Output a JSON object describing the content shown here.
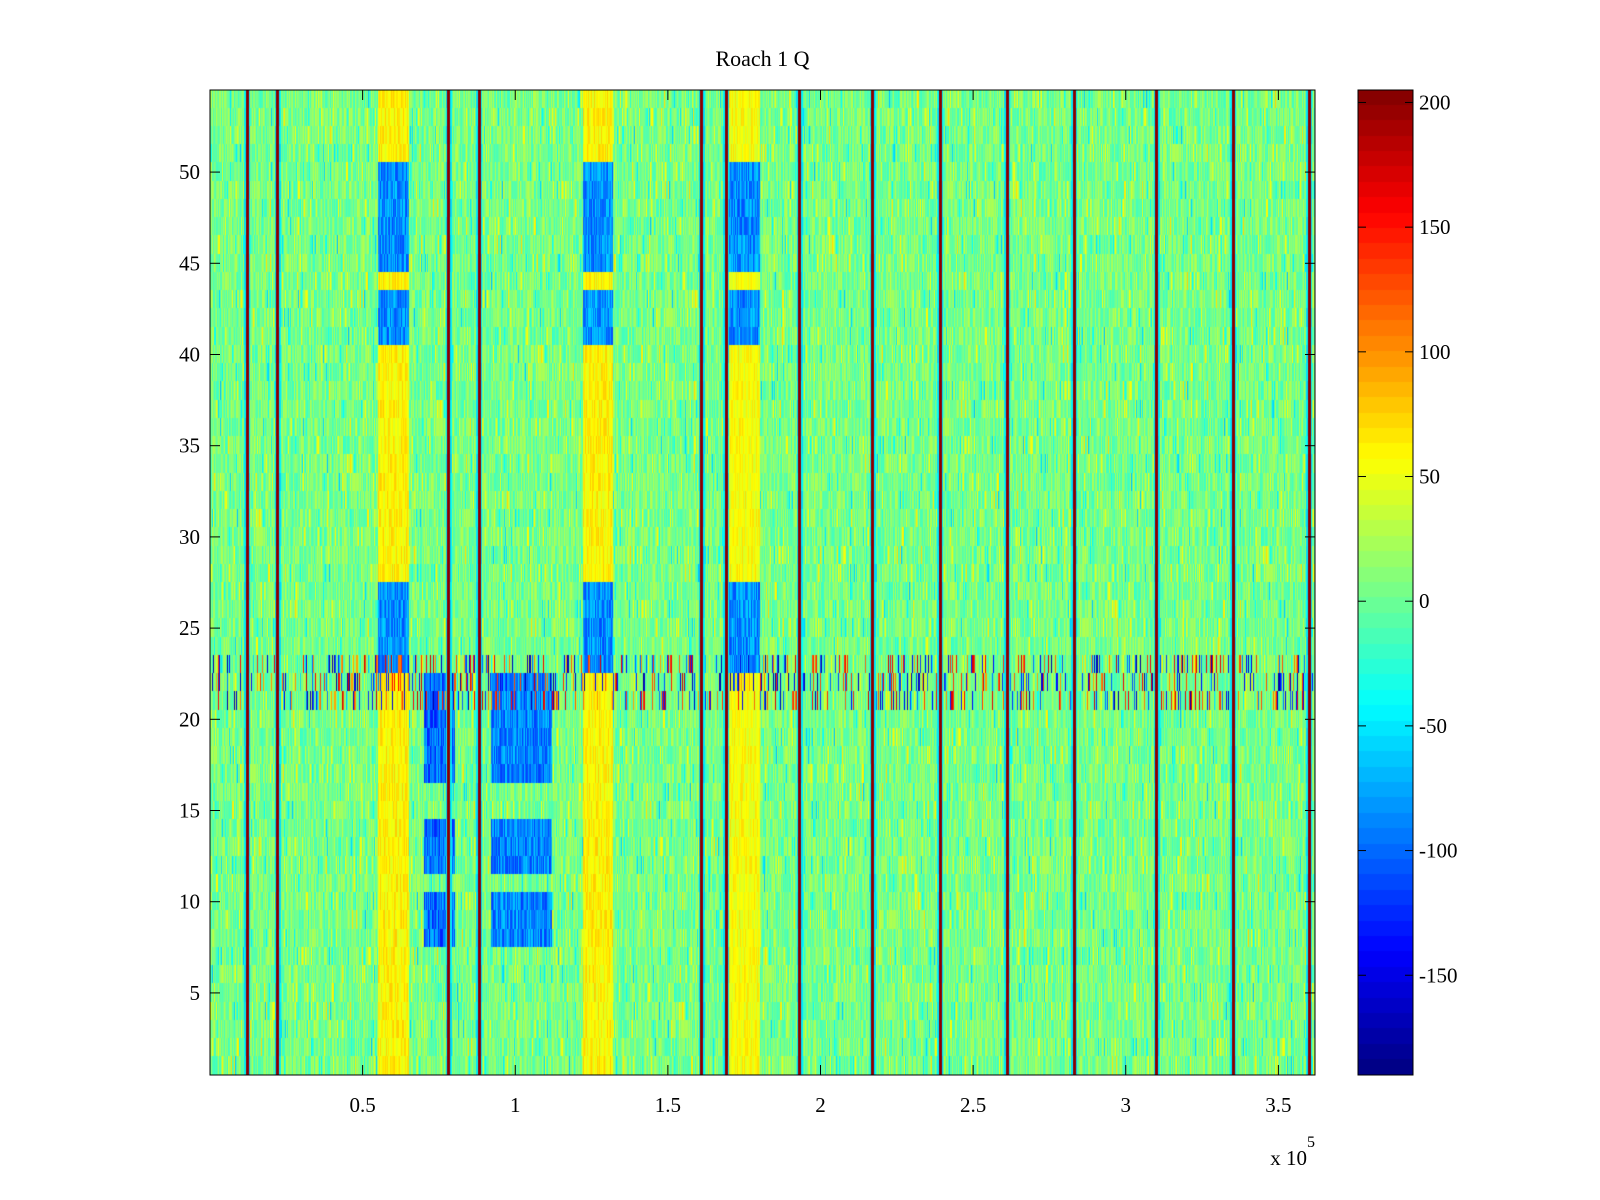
{
  "chart_data": {
    "type": "heatmap",
    "title": "Roach 1 Q",
    "xlabel": "",
    "ylabel": "",
    "x_exponent_label": "x 10",
    "x_exponent_power": "5",
    "x_scale": 100000,
    "xlim": [
      0,
      3.62
    ],
    "ylim": [
      0.5,
      54.5
    ],
    "n_rows": 54,
    "x_ticks": [
      0.5,
      1,
      1.5,
      2,
      2.5,
      3,
      3.5
    ],
    "x_tick_labels": [
      "0.5",
      "1",
      "1.5",
      "2",
      "2.5",
      "3",
      "3.5"
    ],
    "y_ticks": [
      5,
      10,
      15,
      20,
      25,
      30,
      35,
      40,
      45,
      50
    ],
    "y_tick_labels": [
      "5",
      "10",
      "15",
      "20",
      "25",
      "30",
      "35",
      "40",
      "45",
      "50"
    ],
    "colormap": "jet",
    "clim": [
      -190,
      205
    ],
    "colorbar_ticks": [
      200,
      150,
      100,
      50,
      0,
      -50,
      -100,
      -150
    ],
    "colorbar_tick_labels": [
      "200",
      "150",
      "100",
      "50",
      "0",
      "-50",
      "-100",
      "-150"
    ],
    "background_value_range": [
      -20,
      30
    ],
    "vertical_stripe_columns_x": [
      0.12,
      0.22,
      0.78,
      0.88,
      1.61,
      1.69,
      1.93,
      2.17,
      2.39,
      2.61,
      2.83,
      3.1,
      3.35,
      3.6
    ],
    "high_activity_rows": [
      21,
      22,
      23
    ],
    "warm_region_columns": [
      {
        "x_from": 0.55,
        "x_to": 0.65,
        "value": 60
      },
      {
        "x_from": 1.22,
        "x_to": 1.32,
        "value": 60
      },
      {
        "x_from": 1.7,
        "x_to": 1.8,
        "value": 55
      }
    ],
    "cool_region_columns": [
      {
        "x_from": 0.55,
        "x_to": 0.65,
        "rows": [
          24,
          26,
          42,
          46,
          48,
          49
        ],
        "value": -95
      },
      {
        "x_from": 0.7,
        "x_to": 0.8,
        "rows": [
          9,
          13,
          18,
          21
        ],
        "value": -110
      },
      {
        "x_from": 0.92,
        "x_to": 1.12,
        "rows": [
          9,
          13,
          18,
          21
        ],
        "value": -100
      },
      {
        "x_from": 1.22,
        "x_to": 1.32,
        "rows": [
          24,
          26,
          42,
          46,
          48,
          49
        ],
        "value": -95
      },
      {
        "x_from": 1.7,
        "x_to": 1.8,
        "rows": [
          24,
          26,
          42,
          46,
          48,
          49
        ],
        "value": -95
      }
    ]
  }
}
